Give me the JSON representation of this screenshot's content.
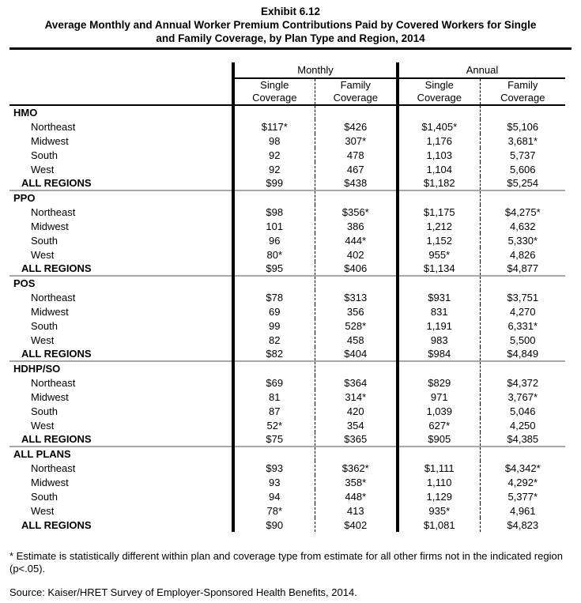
{
  "title": {
    "lines": [
      "Exhibit 6.12",
      "Average Monthly and Annual Worker Premium Contributions Paid by Covered Workers for Single",
      "and Family Coverage, by Plan Type and Region, 2014"
    ]
  },
  "table": {
    "col_groups": [
      "Monthly",
      "Annual"
    ],
    "sub_headers": [
      "Single\nCoverage",
      "Family\nCoverage",
      "Single\nCoverage",
      "Family\nCoverage"
    ],
    "sections": [
      {
        "name": "HMO",
        "rows": [
          {
            "label": "Northeast",
            "values": [
              "$117*",
              "$426",
              "$1,405*",
              "$5,106"
            ]
          },
          {
            "label": "Midwest",
            "values": [
              "98",
              "307*",
              "1,176",
              "3,681*"
            ]
          },
          {
            "label": "South",
            "values": [
              "92",
              "478",
              "1,103",
              "5,737"
            ]
          },
          {
            "label": "West",
            "values": [
              "92",
              "467",
              "1,104",
              "5,606"
            ]
          },
          {
            "label": "ALL REGIONS",
            "values": [
              "$99",
              "$438",
              "$1,182",
              "$5,254"
            ],
            "is_total": true
          }
        ]
      },
      {
        "name": "PPO",
        "rows": [
          {
            "label": "Northeast",
            "values": [
              "$98",
              "$356*",
              "$1,175",
              "$4,275*"
            ]
          },
          {
            "label": "Midwest",
            "values": [
              "101",
              "386",
              "1,212",
              "4,632"
            ]
          },
          {
            "label": "South",
            "values": [
              "96",
              "444*",
              "1,152",
              "5,330*"
            ]
          },
          {
            "label": "West",
            "values": [
              "80*",
              "402",
              "955*",
              "4,826"
            ]
          },
          {
            "label": "ALL REGIONS",
            "values": [
              "$95",
              "$406",
              "$1,134",
              "$4,877"
            ],
            "is_total": true
          }
        ]
      },
      {
        "name": "POS",
        "rows": [
          {
            "label": "Northeast",
            "values": [
              "$78",
              "$313",
              "$931",
              "$3,751"
            ]
          },
          {
            "label": "Midwest",
            "values": [
              "69",
              "356",
              "831",
              "4,270"
            ]
          },
          {
            "label": "South",
            "values": [
              "99",
              "528*",
              "1,191",
              "6,331*"
            ]
          },
          {
            "label": "West",
            "values": [
              "82",
              "458",
              "983",
              "5,500"
            ]
          },
          {
            "label": "ALL REGIONS",
            "values": [
              "$82",
              "$404",
              "$984",
              "$4,849"
            ],
            "is_total": true
          }
        ]
      },
      {
        "name": "HDHP/SO",
        "rows": [
          {
            "label": "Northeast",
            "values": [
              "$69",
              "$364",
              "$829",
              "$4,372"
            ]
          },
          {
            "label": "Midwest",
            "values": [
              "81",
              "314*",
              "971",
              "3,767*"
            ]
          },
          {
            "label": "South",
            "values": [
              "87",
              "420",
              "1,039",
              "5,046"
            ]
          },
          {
            "label": "West",
            "values": [
              "52*",
              "354",
              "627*",
              "4,250"
            ]
          },
          {
            "label": "ALL REGIONS",
            "values": [
              "$75",
              "$365",
              "$905",
              "$4,385"
            ],
            "is_total": true
          }
        ]
      },
      {
        "name": "ALL PLANS",
        "rows": [
          {
            "label": "Northeast",
            "values": [
              "$93",
              "$362*",
              "$1,111",
              "$4,342*"
            ]
          },
          {
            "label": "Midwest",
            "values": [
              "93",
              "358*",
              "1,110",
              "4,292*"
            ]
          },
          {
            "label": "South",
            "values": [
              "94",
              "448*",
              "1,129",
              "5,377*"
            ]
          },
          {
            "label": "West",
            "values": [
              "78*",
              "413",
              "935*",
              "4,961"
            ]
          },
          {
            "label": "ALL REGIONS",
            "values": [
              "$90",
              "$402",
              "$1,081",
              "$4,823"
            ],
            "is_total": true
          }
        ]
      }
    ]
  },
  "footnotes": {
    "asterisk": "* Estimate is statistically different within plan and coverage type from estimate for all other firms not in the indicated region (p<.05).",
    "source": "Source: Kaiser/HRET Survey of Employer-Sponsored Health Benefits, 2014."
  }
}
